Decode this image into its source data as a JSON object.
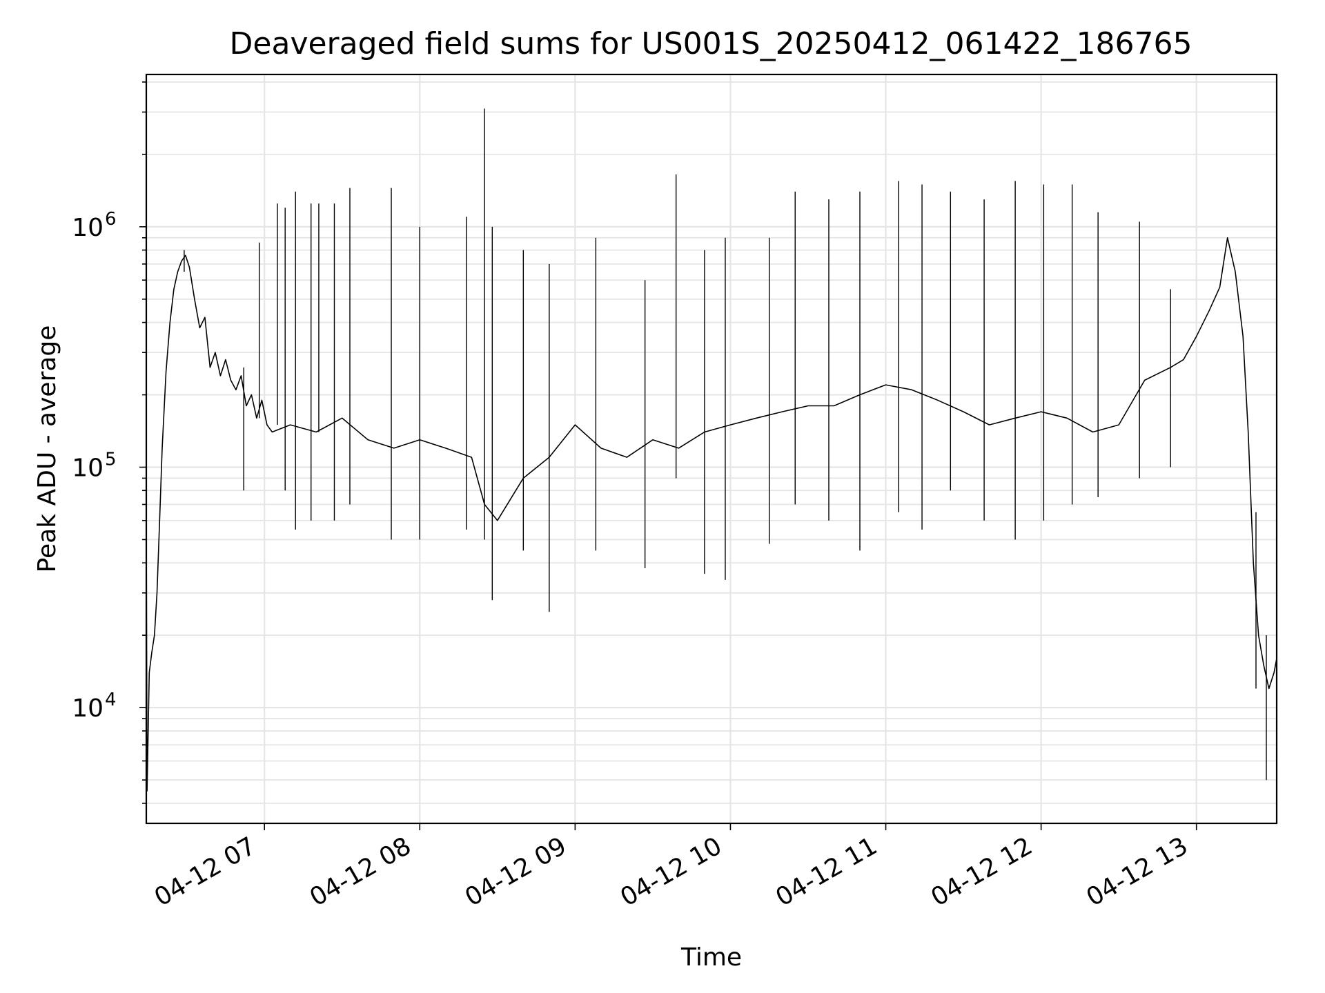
{
  "chart_data": {
    "type": "line",
    "title": "Deaveraged field sums for US001S_20250412_061422_186765",
    "xlabel": "Time",
    "ylabel": "Peak ADU - average",
    "yscale": "log",
    "ylim": [
      3300,
      4300000
    ],
    "xlim": [
      "2025-04-12 06:14:22",
      "2025-04-12 13:31:00"
    ],
    "grid": true,
    "line_color": "#000000",
    "grid_color": "#e5e5e5",
    "x_ticks": [
      "2025-04-12 07:00",
      "2025-04-12 08:00",
      "2025-04-12 09:00",
      "2025-04-12 10:00",
      "2025-04-12 11:00",
      "2025-04-12 12:00",
      "2025-04-12 13:00"
    ],
    "x_tick_labels": [
      "04-12 07",
      "04-12 08",
      "04-12 09",
      "04-12 10",
      "04-12 11",
      "04-12 12",
      "04-12 13"
    ],
    "y_ticks": [
      {
        "value": 10000,
        "base": "10",
        "exp": "4"
      },
      {
        "value": 100000,
        "base": "10",
        "exp": "5"
      },
      {
        "value": 1000000,
        "base": "10",
        "exp": "6"
      }
    ],
    "series": [
      {
        "points": [
          [
            "2025-04-12 06:14:22",
            60000
          ],
          [
            "2025-04-12 06:14:40",
            4500
          ],
          [
            "2025-04-12 06:15:30",
            14000
          ],
          [
            "2025-04-12 06:16:30",
            17000
          ],
          [
            "2025-04-12 06:17:30",
            20000
          ],
          [
            "2025-04-12 06:18:30",
            30000
          ],
          [
            "2025-04-12 06:19:30",
            60000
          ],
          [
            "2025-04-12 06:20:30",
            120000
          ],
          [
            "2025-04-12 06:22:00",
            250000
          ],
          [
            "2025-04-12 06:23:30",
            400000
          ],
          [
            "2025-04-12 06:25:00",
            550000
          ],
          [
            "2025-04-12 06:26:30",
            650000
          ],
          [
            "2025-04-12 06:28:00",
            720000
          ],
          [
            "2025-04-12 06:29:30",
            760000
          ],
          [
            "2025-04-12 06:31:00",
            680000
          ],
          [
            "2025-04-12 06:33:00",
            500000
          ],
          [
            "2025-04-12 06:35:00",
            380000
          ],
          [
            "2025-04-12 06:37:00",
            420000
          ],
          [
            "2025-04-12 06:39:00",
            260000
          ],
          [
            "2025-04-12 06:41:00",
            300000
          ],
          [
            "2025-04-12 06:43:00",
            240000
          ],
          [
            "2025-04-12 06:45:00",
            280000
          ],
          [
            "2025-04-12 06:47:00",
            230000
          ],
          [
            "2025-04-12 06:49:00",
            210000
          ],
          [
            "2025-04-12 06:51:00",
            240000
          ],
          [
            "2025-04-12 06:53:00",
            180000
          ],
          [
            "2025-04-12 06:55:00",
            200000
          ],
          [
            "2025-04-12 06:57:00",
            160000
          ],
          [
            "2025-04-12 06:59:00",
            190000
          ],
          [
            "2025-04-12 07:01:00",
            150000
          ],
          [
            "2025-04-12 07:03:00",
            140000
          ],
          [
            "2025-04-12 07:10:00",
            150000
          ],
          [
            "2025-04-12 07:20:00",
            140000
          ],
          [
            "2025-04-12 07:30:00",
            160000
          ],
          [
            "2025-04-12 07:40:00",
            130000
          ],
          [
            "2025-04-12 07:50:00",
            120000
          ],
          [
            "2025-04-12 08:00:00",
            130000
          ],
          [
            "2025-04-12 08:10:00",
            120000
          ],
          [
            "2025-04-12 08:20:00",
            110000
          ],
          [
            "2025-04-12 08:25:00",
            70000
          ],
          [
            "2025-04-12 08:30:00",
            60000
          ],
          [
            "2025-04-12 08:40:00",
            90000
          ],
          [
            "2025-04-12 08:50:00",
            110000
          ],
          [
            "2025-04-12 09:00:00",
            150000
          ],
          [
            "2025-04-12 09:10:00",
            120000
          ],
          [
            "2025-04-12 09:20:00",
            110000
          ],
          [
            "2025-04-12 09:30:00",
            130000
          ],
          [
            "2025-04-12 09:40:00",
            120000
          ],
          [
            "2025-04-12 09:50:00",
            140000
          ],
          [
            "2025-04-12 10:00:00",
            150000
          ],
          [
            "2025-04-12 10:10:00",
            160000
          ],
          [
            "2025-04-12 10:20:00",
            170000
          ],
          [
            "2025-04-12 10:30:00",
            180000
          ],
          [
            "2025-04-12 10:40:00",
            180000
          ],
          [
            "2025-04-12 10:50:00",
            200000
          ],
          [
            "2025-04-12 11:00:00",
            220000
          ],
          [
            "2025-04-12 11:10:00",
            210000
          ],
          [
            "2025-04-12 11:20:00",
            190000
          ],
          [
            "2025-04-12 11:30:00",
            170000
          ],
          [
            "2025-04-12 11:40:00",
            150000
          ],
          [
            "2025-04-12 11:50:00",
            160000
          ],
          [
            "2025-04-12 12:00:00",
            170000
          ],
          [
            "2025-04-12 12:10:00",
            160000
          ],
          [
            "2025-04-12 12:20:00",
            140000
          ],
          [
            "2025-04-12 12:30:00",
            150000
          ],
          [
            "2025-04-12 12:40:00",
            230000
          ],
          [
            "2025-04-12 12:50:00",
            260000
          ],
          [
            "2025-04-12 12:55:00",
            280000
          ],
          [
            "2025-04-12 13:00:00",
            350000
          ],
          [
            "2025-04-12 13:05:00",
            450000
          ],
          [
            "2025-04-12 13:09:00",
            560000
          ],
          [
            "2025-04-12 13:12:00",
            900000
          ],
          [
            "2025-04-12 13:15:00",
            650000
          ],
          [
            "2025-04-12 13:18:00",
            350000
          ],
          [
            "2025-04-12 13:20:00",
            140000
          ],
          [
            "2025-04-12 13:22:00",
            40000
          ],
          [
            "2025-04-12 13:24:00",
            20000
          ],
          [
            "2025-04-12 13:26:00",
            15000
          ],
          [
            "2025-04-12 13:28:00",
            12000
          ],
          [
            "2025-04-12 13:30:00",
            14000
          ],
          [
            "2025-04-12 13:31:00",
            16000
          ]
        ]
      }
    ],
    "spikes": [
      [
        "2025-04-12 06:29:00",
        800000,
        650000
      ],
      [
        "2025-04-12 06:52:00",
        80000,
        260000
      ],
      [
        "2025-04-12 06:58:00",
        860000,
        160000
      ],
      [
        "2025-04-12 07:05:00",
        1250000,
        150000
      ],
      [
        "2025-04-12 07:08:00",
        1200000,
        80000
      ],
      [
        "2025-04-12 07:12:00",
        1400000,
        55000
      ],
      [
        "2025-04-12 07:18:00",
        1250000,
        60000
      ],
      [
        "2025-04-12 07:21:00",
        1250000,
        140000
      ],
      [
        "2025-04-12 07:27:00",
        1250000,
        60000
      ],
      [
        "2025-04-12 07:33:00",
        1450000,
        70000
      ],
      [
        "2025-04-12 07:49:00",
        1450000,
        50000
      ],
      [
        "2025-04-12 08:00:00",
        1000000,
        50000
      ],
      [
        "2025-04-12 08:18:00",
        1100000,
        55000
      ],
      [
        "2025-04-12 08:25:00",
        3100000,
        50000
      ],
      [
        "2025-04-12 08:28:00",
        1000000,
        28000
      ],
      [
        "2025-04-12 08:40:00",
        800000,
        45000
      ],
      [
        "2025-04-12 08:50:00",
        700000,
        25000
      ],
      [
        "2025-04-12 09:08:00",
        900000,
        45000
      ],
      [
        "2025-04-12 09:27:00",
        600000,
        38000
      ],
      [
        "2025-04-12 09:39:00",
        1650000,
        90000
      ],
      [
        "2025-04-12 09:50:00",
        800000,
        36000
      ],
      [
        "2025-04-12 09:58:00",
        900000,
        34000
      ],
      [
        "2025-04-12 10:15:00",
        900000,
        48000
      ],
      [
        "2025-04-12 10:25:00",
        1400000,
        70000
      ],
      [
        "2025-04-12 10:38:00",
        1300000,
        60000
      ],
      [
        "2025-04-12 10:50:00",
        1400000,
        45000
      ],
      [
        "2025-04-12 11:05:00",
        1550000,
        65000
      ],
      [
        "2025-04-12 11:14:00",
        1500000,
        55000
      ],
      [
        "2025-04-12 11:25:00",
        1400000,
        80000
      ],
      [
        "2025-04-12 11:38:00",
        1300000,
        60000
      ],
      [
        "2025-04-12 11:50:00",
        1550000,
        50000
      ],
      [
        "2025-04-12 12:01:00",
        1500000,
        60000
      ],
      [
        "2025-04-12 12:12:00",
        1500000,
        70000
      ],
      [
        "2025-04-12 12:22:00",
        1150000,
        75000
      ],
      [
        "2025-04-12 12:38:00",
        1050000,
        90000
      ],
      [
        "2025-04-12 12:50:00",
        550000,
        100000
      ],
      [
        "2025-04-12 13:23:00",
        65000,
        12000
      ],
      [
        "2025-04-12 13:27:00",
        20000,
        5000
      ]
    ]
  }
}
